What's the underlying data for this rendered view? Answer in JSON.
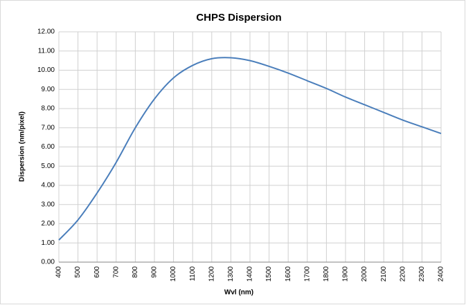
{
  "chart_data": {
    "type": "line",
    "title": "CHPS Dispersion",
    "xlabel": "Wvl (nm)",
    "ylabel": "Dispersion (nm/pixel)",
    "x": [
      400,
      500,
      600,
      700,
      800,
      900,
      1000,
      1100,
      1200,
      1300,
      1400,
      1500,
      1600,
      1700,
      1800,
      1900,
      2000,
      2100,
      2200,
      2300,
      2400
    ],
    "series": [
      {
        "name": "Dispersion",
        "color": "#4a7ebb",
        "values": [
          1.15,
          2.2,
          3.6,
          5.2,
          7.0,
          8.5,
          9.6,
          10.25,
          10.6,
          10.65,
          10.5,
          10.2,
          9.85,
          9.45,
          9.05,
          8.6,
          8.2,
          7.8,
          7.4,
          7.05,
          6.7
        ]
      }
    ],
    "xlim": [
      400,
      2400
    ],
    "xticks": [
      400,
      500,
      600,
      700,
      800,
      900,
      1000,
      1100,
      1200,
      1300,
      1400,
      1500,
      1600,
      1700,
      1800,
      1900,
      2000,
      2100,
      2200,
      2300,
      2400
    ],
    "ylim": [
      0,
      12
    ],
    "yticks": [
      {
        "value": 0,
        "label": "0.00"
      },
      {
        "value": 1,
        "label": "1.00"
      },
      {
        "value": 2,
        "label": "2.00"
      },
      {
        "value": 3,
        "label": "3.00"
      },
      {
        "value": 4,
        "label": "4.00"
      },
      {
        "value": 5,
        "label": "5.00"
      },
      {
        "value": 6,
        "label": "6.00"
      },
      {
        "value": 7,
        "label": "7.00"
      },
      {
        "value": 8,
        "label": "8.00"
      },
      {
        "value": 9,
        "label": "9.00"
      },
      {
        "value": 10,
        "label": "10.00"
      },
      {
        "value": 11,
        "label": "11.00"
      },
      {
        "value": 12,
        "label": "12.00"
      }
    ],
    "grid": true
  }
}
